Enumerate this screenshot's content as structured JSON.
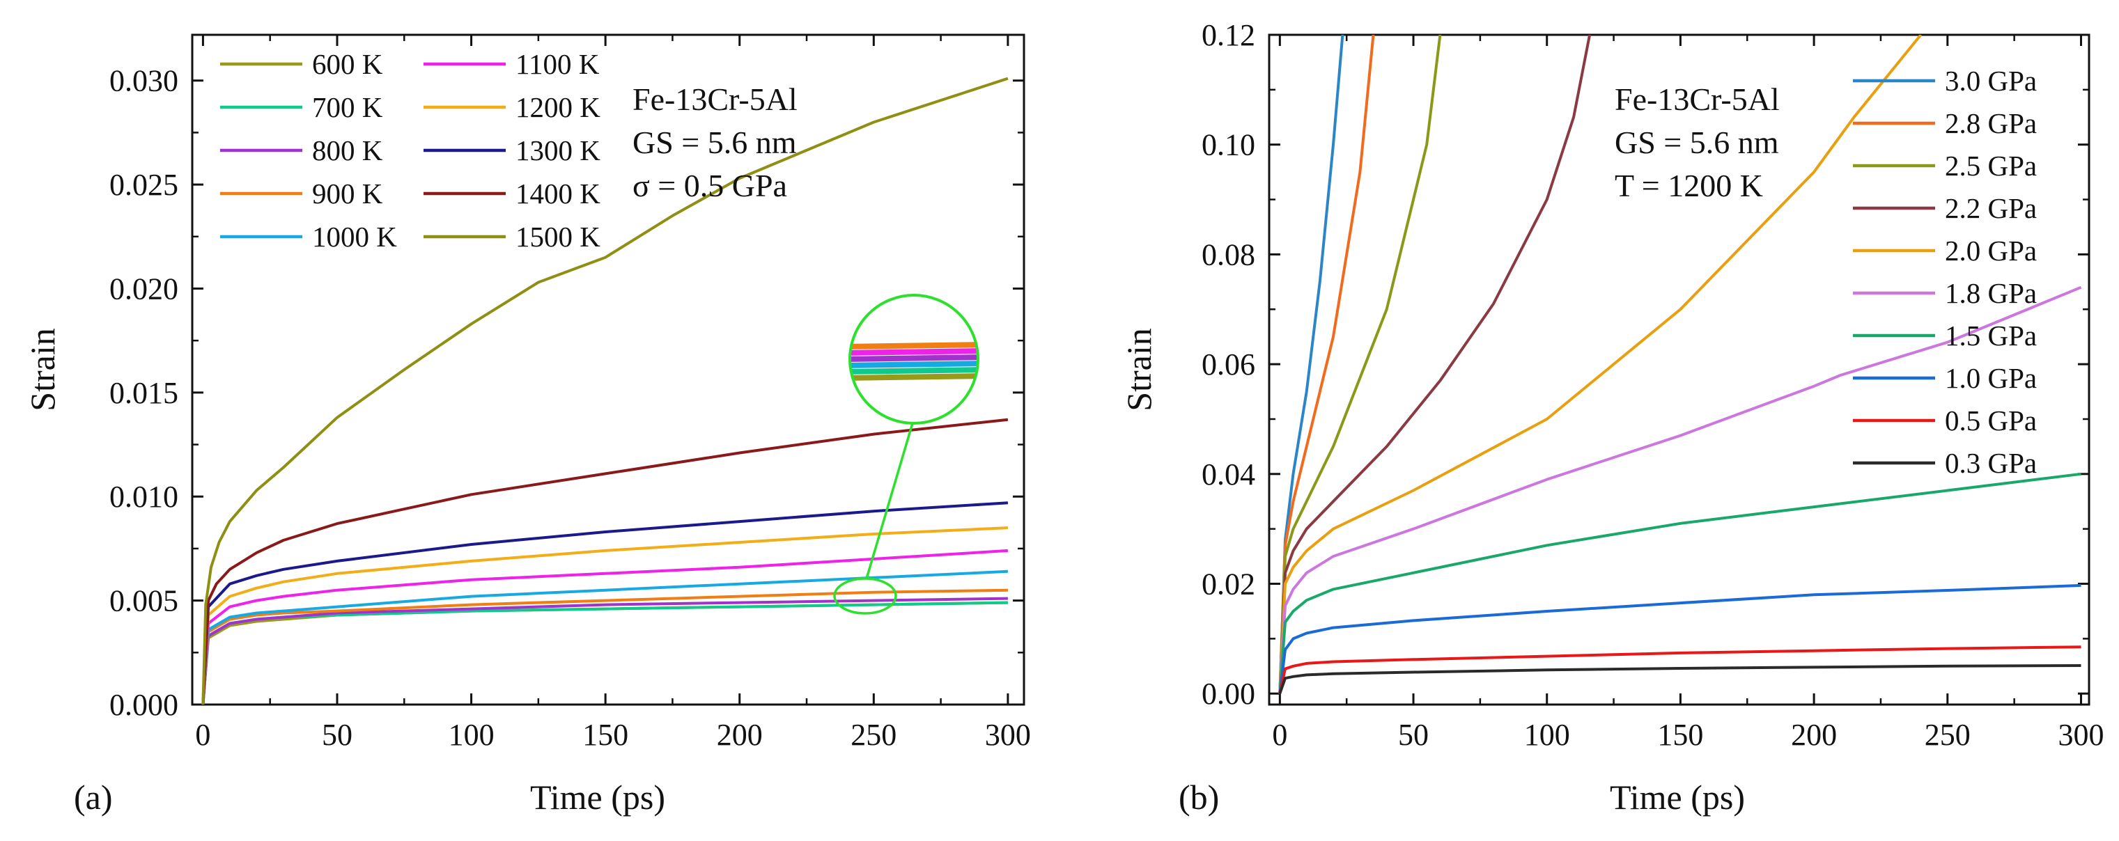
{
  "chart_data": [
    {
      "type": "line",
      "panel_label": "(a)",
      "xlabel": "Time (ps)",
      "ylabel": "Strain",
      "xlim": [
        -4,
        306
      ],
      "ylim": [
        0,
        0.0322
      ],
      "xticks": [
        0,
        50,
        100,
        150,
        200,
        250,
        300
      ],
      "yticks": [
        0.0,
        0.005,
        0.01,
        0.015,
        0.02,
        0.025,
        0.03
      ],
      "xtick_labels": [
        "0",
        "50",
        "100",
        "150",
        "200",
        "250",
        "300"
      ],
      "ytick_labels": [
        "0.000",
        "0.005",
        "0.010",
        "0.015",
        "0.020",
        "0.025",
        "0.030"
      ],
      "legend_position": "top-left",
      "legend_columns": 2,
      "annotation": [
        "Fe-13Cr-5Al",
        "GS = 5.6 nm",
        "σ = 0.5 GPa"
      ],
      "inset": "zoom circle on curves near t = 250 ps",
      "series": [
        {
          "name": "600 K",
          "color": "#9a9a1a",
          "x": [
            0,
            2,
            10,
            20,
            30,
            50,
            100,
            150,
            200,
            250,
            300
          ],
          "y": [
            0.0,
            0.0032,
            0.0038,
            0.004,
            0.0041,
            0.0043,
            0.0045,
            0.0046,
            0.0047,
            0.0048,
            0.0049
          ]
        },
        {
          "name": "700 K",
          "color": "#12c98d",
          "x": [
            0,
            2,
            10,
            20,
            30,
            50,
            100,
            150,
            200,
            250,
            300
          ],
          "y": [
            0.0,
            0.0033,
            0.0039,
            0.0041,
            0.0042,
            0.0043,
            0.0045,
            0.0046,
            0.0047,
            0.0048,
            0.0049
          ]
        },
        {
          "name": "800 K",
          "color": "#a033cc",
          "x": [
            0,
            2,
            10,
            20,
            30,
            50,
            100,
            150,
            200,
            250,
            300
          ],
          "y": [
            0.0,
            0.0033,
            0.0039,
            0.0041,
            0.0042,
            0.0044,
            0.0046,
            0.0048,
            0.0049,
            0.005,
            0.0051
          ]
        },
        {
          "name": "900 K",
          "color": "#f07e12",
          "x": [
            0,
            2,
            10,
            20,
            30,
            50,
            100,
            150,
            200,
            250,
            300
          ],
          "y": [
            0.0,
            0.0035,
            0.0041,
            0.0043,
            0.0044,
            0.0045,
            0.0048,
            0.005,
            0.0052,
            0.0054,
            0.0055
          ]
        },
        {
          "name": "1000 K",
          "color": "#17a9e2",
          "x": [
            0,
            2,
            10,
            20,
            30,
            50,
            100,
            150,
            200,
            250,
            300
          ],
          "y": [
            0.0,
            0.0036,
            0.0042,
            0.0044,
            0.0045,
            0.0047,
            0.0052,
            0.0055,
            0.0058,
            0.0061,
            0.0064
          ]
        },
        {
          "name": "1100 K",
          "color": "#ee22e8",
          "x": [
            0,
            2,
            10,
            20,
            30,
            50,
            100,
            150,
            200,
            250,
            300
          ],
          "y": [
            0.0,
            0.0039,
            0.0047,
            0.005,
            0.0052,
            0.0055,
            0.006,
            0.0063,
            0.0066,
            0.007,
            0.0074
          ]
        },
        {
          "name": "1200 K",
          "color": "#f2ad17",
          "x": [
            0,
            2,
            10,
            20,
            30,
            50,
            100,
            150,
            200,
            250,
            300
          ],
          "y": [
            0.0,
            0.0043,
            0.0052,
            0.0056,
            0.0059,
            0.0063,
            0.0069,
            0.0074,
            0.0078,
            0.0082,
            0.0085
          ]
        },
        {
          "name": "1300 K",
          "color": "#1a1a8c",
          "x": [
            0,
            2,
            10,
            20,
            30,
            50,
            100,
            150,
            200,
            250,
            300
          ],
          "y": [
            0.0,
            0.0047,
            0.0058,
            0.0062,
            0.0065,
            0.0069,
            0.0077,
            0.0083,
            0.0088,
            0.0093,
            0.0097
          ]
        },
        {
          "name": "1400 K",
          "color": "#8a1a1a",
          "x": [
            0,
            2,
            5,
            10,
            20,
            30,
            50,
            75,
            100,
            150,
            200,
            250,
            300
          ],
          "y": [
            0.0,
            0.005,
            0.0058,
            0.0065,
            0.0073,
            0.0079,
            0.0087,
            0.0094,
            0.0101,
            0.0111,
            0.0121,
            0.013,
            0.0137
          ]
        },
        {
          "name": "1500 K",
          "color": "#8f8f14",
          "x": [
            0,
            1,
            3,
            6,
            10,
            20,
            30,
            50,
            75,
            100,
            125,
            150,
            175,
            200,
            250,
            300
          ],
          "y": [
            0.0,
            0.0048,
            0.0066,
            0.0078,
            0.0088,
            0.0103,
            0.0114,
            0.0138,
            0.0161,
            0.0183,
            0.0203,
            0.0215,
            0.0235,
            0.0253,
            0.028,
            0.0301
          ]
        }
      ]
    },
    {
      "type": "line",
      "panel_label": "(b)",
      "xlabel": "Time (ps)",
      "ylabel": "Strain",
      "xlim": [
        -4,
        303
      ],
      "ylim": [
        -0.002,
        0.12
      ],
      "xticks": [
        0,
        50,
        100,
        150,
        200,
        250,
        300
      ],
      "yticks": [
        0.0,
        0.02,
        0.04,
        0.06,
        0.08,
        0.1,
        0.12
      ],
      "xtick_labels": [
        "0",
        "50",
        "100",
        "150",
        "200",
        "250",
        "300"
      ],
      "ytick_labels": [
        "0.00",
        "0.02",
        "0.04",
        "0.06",
        "0.08",
        "0.10",
        "0.12"
      ],
      "legend_position": "top-right",
      "legend_columns": 1,
      "annotation": [
        "Fe-13Cr-5Al",
        "GS = 5.6 nm",
        "T = 1200 K"
      ],
      "series": [
        {
          "name": "3.0 GPa",
          "color": "#2a86c8",
          "x": [
            0,
            2,
            5,
            10,
            15,
            20,
            23.5
          ],
          "y": [
            0.0,
            0.028,
            0.04,
            0.055,
            0.075,
            0.1,
            0.12
          ]
        },
        {
          "name": "2.8 GPa",
          "color": "#f26a1e",
          "x": [
            0,
            2,
            5,
            10,
            20,
            30,
            35
          ],
          "y": [
            0.0,
            0.027,
            0.035,
            0.045,
            0.065,
            0.095,
            0.12
          ]
        },
        {
          "name": "2.5 GPa",
          "color": "#8a9a18",
          "x": [
            0,
            2,
            5,
            10,
            20,
            40,
            55,
            60
          ],
          "y": [
            0.0,
            0.025,
            0.03,
            0.035,
            0.045,
            0.07,
            0.1,
            0.12
          ]
        },
        {
          "name": "2.2 GPa",
          "color": "#8a3a42",
          "x": [
            0,
            2,
            5,
            10,
            20,
            40,
            60,
            80,
            100,
            110,
            116
          ],
          "y": [
            0.0,
            0.022,
            0.026,
            0.03,
            0.035,
            0.045,
            0.057,
            0.071,
            0.09,
            0.105,
            0.12
          ]
        },
        {
          "name": "2.0 GPa",
          "color": "#e8a010",
          "x": [
            0,
            2,
            5,
            10,
            20,
            50,
            100,
            150,
            200,
            215,
            240
          ],
          "y": [
            0.0,
            0.02,
            0.023,
            0.026,
            0.03,
            0.037,
            0.05,
            0.07,
            0.095,
            0.105,
            0.12
          ]
        },
        {
          "name": "1.8 GPa",
          "color": "#cc77dd",
          "x": [
            0,
            2,
            5,
            10,
            20,
            50,
            100,
            150,
            200,
            210,
            250,
            300
          ],
          "y": [
            0.0,
            0.016,
            0.019,
            0.022,
            0.025,
            0.03,
            0.039,
            0.047,
            0.056,
            0.058,
            0.064,
            0.074
          ]
        },
        {
          "name": "1.5 GPa",
          "color": "#1aa86a",
          "x": [
            0,
            2,
            5,
            10,
            20,
            50,
            100,
            150,
            200,
            250,
            300
          ],
          "y": [
            0.0,
            0.013,
            0.015,
            0.017,
            0.019,
            0.022,
            0.027,
            0.031,
            0.034,
            0.037,
            0.04
          ]
        },
        {
          "name": "1.0 GPa",
          "color": "#1a6ad8",
          "x": [
            0,
            2,
            5,
            10,
            20,
            50,
            100,
            150,
            200,
            250,
            300
          ],
          "y": [
            0.0,
            0.008,
            0.01,
            0.011,
            0.012,
            0.0133,
            0.015,
            0.0165,
            0.018,
            0.0188,
            0.0197
          ]
        },
        {
          "name": "0.5 GPa",
          "color": "#e81818",
          "x": [
            0,
            2,
            5,
            10,
            20,
            50,
            100,
            150,
            200,
            250,
            300
          ],
          "y": [
            0.0,
            0.0045,
            0.005,
            0.0055,
            0.0058,
            0.0062,
            0.0068,
            0.0074,
            0.0078,
            0.0082,
            0.0085
          ]
        },
        {
          "name": "0.3 GPa",
          "color": "#2a2a2a",
          "x": [
            0,
            2,
            5,
            10,
            20,
            50,
            100,
            150,
            200,
            250,
            300
          ],
          "y": [
            0.0,
            0.0028,
            0.0031,
            0.0034,
            0.0036,
            0.0039,
            0.0043,
            0.0046,
            0.0048,
            0.005,
            0.0051
          ]
        }
      ]
    }
  ]
}
